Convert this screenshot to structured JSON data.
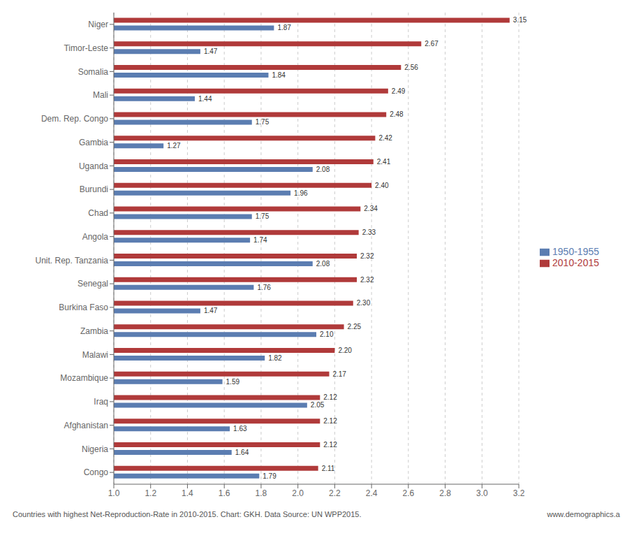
{
  "chart_data": {
    "type": "bar",
    "orientation": "horizontal",
    "categories": [
      "Niger",
      "Timor-Leste",
      "Somalia",
      "Mali",
      "Dem. Rep. Congo",
      "Gambia",
      "Uganda",
      "Burundi",
      "Chad",
      "Angola",
      "Unit. Rep. Tanzania",
      "Senegal",
      "Burkina Faso",
      "Zambia",
      "Malawi",
      "Mozambique",
      "Iraq",
      "Afghanistan",
      "Nigeria",
      "Congo"
    ],
    "series": [
      {
        "name": "2010-2015",
        "color": "#b03a3a",
        "values": [
          3.15,
          2.67,
          2.56,
          2.49,
          2.48,
          2.42,
          2.41,
          2.4,
          2.34,
          2.33,
          2.32,
          2.32,
          2.3,
          2.25,
          2.2,
          2.17,
          2.12,
          2.12,
          2.12,
          2.11
        ],
        "value_labels": [
          "3.15",
          "2.67",
          "2.56",
          "2.49",
          "2.48",
          "2.42",
          "2.41",
          "2.40",
          "2.34",
          "2.33",
          "2.32",
          "2.32",
          "2.30",
          "2.25",
          "2.20",
          "2.17",
          "2.12",
          "2.12",
          "2.12",
          "2.11"
        ]
      },
      {
        "name": "1950-1955",
        "color": "#5b7db1",
        "values": [
          1.87,
          1.47,
          1.84,
          1.44,
          1.75,
          1.27,
          2.08,
          1.96,
          1.75,
          1.74,
          2.08,
          1.76,
          1.47,
          2.1,
          1.82,
          1.59,
          2.05,
          1.63,
          1.64,
          1.79
        ],
        "value_labels": [
          "1.87",
          "1.47",
          "1.84",
          "1.44",
          "1.75",
          "1.27",
          "2.08",
          "1.96",
          "1.75",
          "1.74",
          "2.08",
          "1.76",
          "1.47",
          "2.10",
          "1.82",
          "1.59",
          "2.05",
          "1.63",
          "1.64",
          "1.79"
        ]
      }
    ],
    "xlim": [
      1.0,
      3.2
    ],
    "xticks": [
      {
        "value": 1.0,
        "label": "1.0"
      },
      1.2,
      1.4,
      1.6,
      1.8,
      {
        "value": 2.0,
        "label": "2.0"
      },
      2.2,
      2.4,
      2.6,
      2.8,
      {
        "value": 3.0,
        "label": "3.0"
      },
      3.2
    ],
    "grid": true,
    "legend": "right",
    "data_labels": true,
    "annotations": [
      "Countries with highest Net-Reproduction-Rate in 2010-2015. Chart: GKH.  Data Source: UN WPP2015.",
      "www.demographics.a"
    ]
  }
}
